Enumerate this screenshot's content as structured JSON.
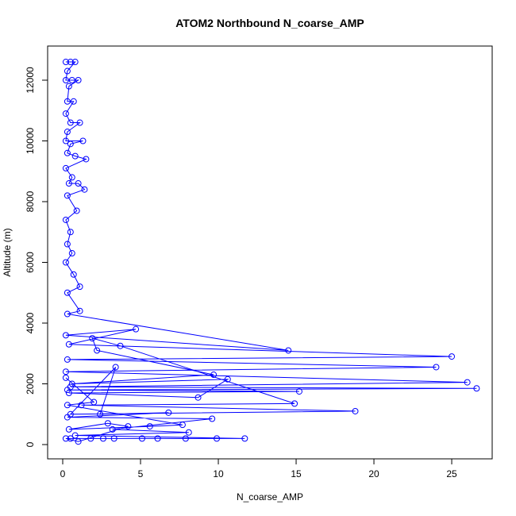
{
  "chart_data": {
    "type": "line",
    "title": "ATOM2 Northbound N_coarse_AMP",
    "x_label": "N_coarse_AMP",
    "y_label": "Altitude (m)",
    "color": "#0000ff",
    "markers": true,
    "xlim": [
      -0.97,
      27.6
    ],
    "ylim": [
      -470,
      13124
    ],
    "xticks": [
      0,
      5,
      10,
      15,
      20,
      25
    ],
    "yticks": [
      0,
      2000,
      4000,
      6000,
      8000,
      10000,
      12000
    ],
    "x": [
      0.2,
      0.5,
      0.8,
      0.3,
      0.2,
      0.6,
      1.0,
      0.4,
      0.3,
      0.7,
      0.2,
      0.5,
      1.1,
      0.3,
      0.2,
      1.3,
      0.5,
      0.3,
      0.8,
      1.5,
      0.2,
      0.6,
      0.4,
      1.0,
      1.4,
      0.3,
      0.9,
      0.2,
      0.5,
      0.3,
      0.6,
      0.2,
      0.7,
      1.1,
      0.3,
      1.1,
      0.3,
      14.5,
      0.2,
      4.7,
      0.4,
      25,
      0.3,
      24,
      0.2,
      26,
      0.5,
      26.6,
      0.3,
      15.2,
      0.4,
      8.7,
      10.6,
      0.6,
      9.7,
      2.2,
      1.9,
      3.7,
      14.9,
      1.2,
      18.8,
      0.5,
      3.4,
      2.4,
      6.8,
      0.3,
      9.6,
      3.2,
      8.1,
      0.8,
      11.7,
      3.3,
      7.9,
      1.8,
      9.9,
      0.5,
      5.1,
      6.1,
      2.6,
      0.2,
      1.0,
      4.2,
      2.9,
      0.4,
      5.6,
      7.7,
      0.3,
      2.0,
      0.2
    ],
    "values": [
      12600,
      12600,
      12600,
      12300,
      12000,
      12000,
      12000,
      11800,
      11300,
      11300,
      10900,
      10600,
      10600,
      10300,
      10000,
      10000,
      9900,
      9600,
      9500,
      9400,
      9100,
      8800,
      8600,
      8600,
      8400,
      8200,
      7700,
      7400,
      7000,
      6600,
      6300,
      6000,
      5600,
      5200,
      5000,
      4400,
      4300,
      3100,
      3600,
      3800,
      3300,
      2900,
      2800,
      2550,
      2400,
      2050,
      1900,
      1850,
      1800,
      1750,
      1700,
      1550,
      2150,
      2000,
      2300,
      3100,
      3500,
      3250,
      1350,
      1300,
      1100,
      1000,
      2550,
      1000,
      1050,
      900,
      850,
      500,
      400,
      300,
      200,
      200,
      200,
      200,
      200,
      200,
      200,
      200,
      200,
      200,
      100,
      600,
      700,
      500,
      600,
      650,
      1300,
      1400,
      2200
    ]
  }
}
